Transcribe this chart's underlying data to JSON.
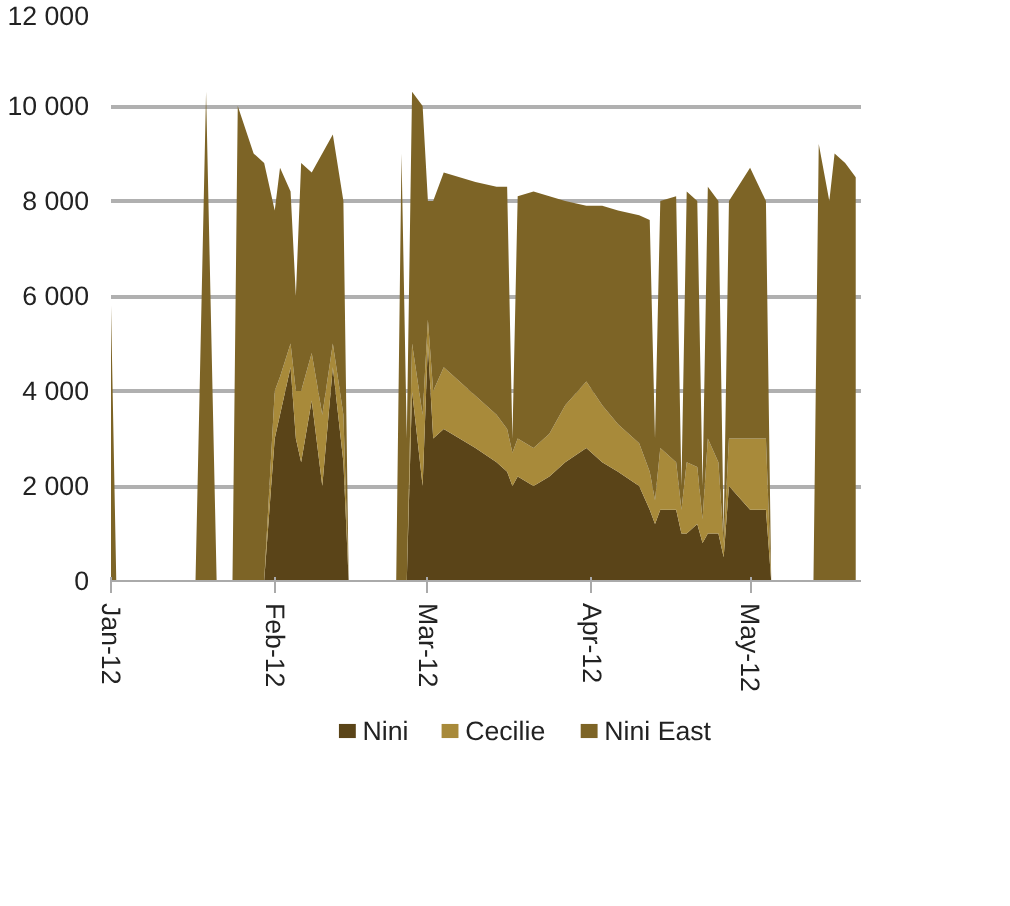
{
  "chart_data": {
    "type": "area",
    "stacked": true,
    "grid": "y",
    "legend": "bottom",
    "x": [
      "2012-01-01",
      "2012-01-02",
      "2012-01-17",
      "2012-01-19",
      "2012-01-21",
      "2012-01-24",
      "2012-01-25",
      "2012-01-28",
      "2012-01-30",
      "2012-02-01",
      "2012-02-02",
      "2012-02-04",
      "2012-02-05",
      "2012-02-06",
      "2012-02-08",
      "2012-02-10",
      "2012-02-12",
      "2012-02-14",
      "2012-02-15",
      "2012-02-24",
      "2012-02-25",
      "2012-02-26",
      "2012-02-27",
      "2012-02-29",
      "2012-03-01",
      "2012-03-02",
      "2012-03-04",
      "2012-03-07",
      "2012-03-10",
      "2012-03-14",
      "2012-03-16",
      "2012-03-17",
      "2012-03-18",
      "2012-03-21",
      "2012-03-24",
      "2012-03-27",
      "2012-03-31",
      "2012-04-03",
      "2012-04-06",
      "2012-04-10",
      "2012-04-12",
      "2012-04-13",
      "2012-04-14",
      "2012-04-17",
      "2012-04-18",
      "2012-04-19",
      "2012-04-21",
      "2012-04-22",
      "2012-04-23",
      "2012-04-25",
      "2012-04-26",
      "2012-04-27",
      "2012-05-01",
      "2012-05-04",
      "2012-05-05",
      "2012-05-13",
      "2012-05-14",
      "2012-05-16",
      "2012-05-17",
      "2012-05-19",
      "2012-05-21"
    ],
    "series": [
      {
        "name": "Nini",
        "color": "#5a4418",
        "values": [
          0,
          0,
          0,
          0,
          0,
          0,
          0,
          0,
          0,
          3000,
          3500,
          4500,
          3000,
          2500,
          3800,
          2000,
          4500,
          2500,
          0,
          0,
          0,
          0,
          4000,
          2000,
          5000,
          3000,
          3200,
          3000,
          2800,
          2500,
          2300,
          2000,
          2200,
          2000,
          2200,
          2500,
          2800,
          2500,
          2300,
          2000,
          1500,
          1200,
          1500,
          1500,
          1000,
          1000,
          1200,
          800,
          1000,
          1000,
          500,
          2000,
          1500,
          1500,
          0,
          0,
          0,
          0,
          0,
          0,
          0
        ]
      },
      {
        "name": "Cecilie",
        "color": "#a88a3a",
        "values": [
          0,
          0,
          0,
          0,
          0,
          0,
          0,
          0,
          0,
          1000,
          800,
          500,
          1000,
          1500,
          1000,
          1500,
          500,
          1000,
          0,
          0,
          0,
          0,
          1000,
          1500,
          500,
          1000,
          1300,
          1200,
          1100,
          1000,
          900,
          700,
          800,
          800,
          900,
          1200,
          1400,
          1200,
          1000,
          900,
          800,
          500,
          1300,
          1000,
          500,
          1500,
          1200,
          500,
          2000,
          1500,
          300,
          1000,
          1500,
          1500,
          0,
          0,
          0,
          0,
          0,
          0,
          0
        ]
      },
      {
        "name": "Nini East",
        "color": "#7d6426",
        "values": [
          5800,
          0,
          0,
          10300,
          0,
          0,
          10000,
          9000,
          8800,
          3800,
          4400,
          3200,
          2000,
          4800,
          3800,
          5500,
          4400,
          4500,
          0,
          0,
          9000,
          3000,
          5300,
          6500,
          2500,
          4000,
          4100,
          4300,
          4500,
          4800,
          5100,
          300,
          5100,
          5400,
          5000,
          4300,
          3700,
          4200,
          4500,
          4800,
          5300,
          1300,
          5200,
          5600,
          500,
          5700,
          5600,
          700,
          5300,
          5500,
          200,
          5000,
          5700,
          5000,
          0,
          0,
          9200,
          8000,
          9000,
          8800,
          8500
        ]
      }
    ],
    "xlim": [
      "2012-01-01",
      "2012-05-22"
    ],
    "xticks": [
      {
        "value": "2012-01-01",
        "label": "Jan-12"
      },
      {
        "value": "2012-02-01",
        "label": "Feb-12"
      },
      {
        "value": "2012-03-01",
        "label": "Mar-12"
      },
      {
        "value": "2012-04-01",
        "label": "Apr-12"
      },
      {
        "value": "2012-05-01",
        "label": "May-12"
      }
    ],
    "ylim": [
      0,
      12000
    ],
    "yticks": [
      0,
      {
        "value": 2000,
        "label": "2 000"
      },
      {
        "value": 4000,
        "label": "4 000"
      },
      {
        "value": 6000,
        "label": "6 000"
      },
      {
        "value": 8000,
        "label": "8 000"
      },
      {
        "value": 10000,
        "label": "10 000"
      },
      {
        "value": 12000,
        "label": "12 000"
      }
    ]
  }
}
